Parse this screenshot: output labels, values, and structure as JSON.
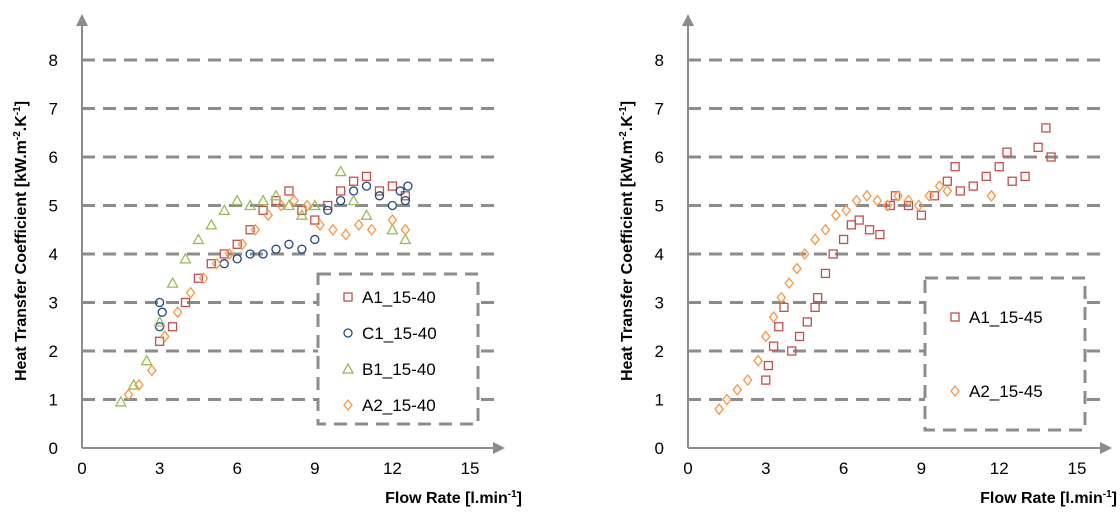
{
  "chart_data": [
    {
      "type": "scatter",
      "title": "",
      "xlabel": "Flow Rate [l.min",
      "xlabel_sup": "-1",
      "xlabel_end": "]",
      "ylabel_parts": [
        "Heat Transfer Coefficient [kW.m",
        "-2",
        ".K",
        "-1",
        "]"
      ],
      "xlim": [
        0,
        15
      ],
      "ylim": [
        0,
        8
      ],
      "xticks": [
        0,
        3,
        6,
        9,
        12,
        15
      ],
      "yticks": [
        0,
        1,
        2,
        3,
        4,
        5,
        6,
        7,
        8
      ],
      "grid": "horizontal dashed",
      "legend_position": "lower-right",
      "series": [
        {
          "name": "A1_15-40",
          "marker": "square",
          "color": "#C0504D",
          "points": [
            [
              3.0,
              2.2
            ],
            [
              3.5,
              2.5
            ],
            [
              4.0,
              3.0
            ],
            [
              4.5,
              3.5
            ],
            [
              5.0,
              3.8
            ],
            [
              5.5,
              4.0
            ],
            [
              6.0,
              4.2
            ],
            [
              6.5,
              4.5
            ],
            [
              7.0,
              4.9
            ],
            [
              7.5,
              5.1
            ],
            [
              8.0,
              5.3
            ],
            [
              8.5,
              4.9
            ],
            [
              9.0,
              4.7
            ],
            [
              9.5,
              5.0
            ],
            [
              10.0,
              5.3
            ],
            [
              10.5,
              5.5
            ],
            [
              11.0,
              5.6
            ],
            [
              11.5,
              5.3
            ],
            [
              12.0,
              5.4
            ],
            [
              12.5,
              5.2
            ]
          ]
        },
        {
          "name": "C1_15-40",
          "marker": "circle",
          "color": "#1F497D",
          "points": [
            [
              3.0,
              3.0
            ],
            [
              3.0,
              2.5
            ],
            [
              3.1,
              2.8
            ],
            [
              5.5,
              3.8
            ],
            [
              6.0,
              3.9
            ],
            [
              6.5,
              4.0
            ],
            [
              7.0,
              4.0
            ],
            [
              7.5,
              4.1
            ],
            [
              8.0,
              4.2
            ],
            [
              8.5,
              4.1
            ],
            [
              9.0,
              4.3
            ],
            [
              9.5,
              4.9
            ],
            [
              10.0,
              5.1
            ],
            [
              10.5,
              5.3
            ],
            [
              11.0,
              5.4
            ],
            [
              11.5,
              5.2
            ],
            [
              12.0,
              5.0
            ],
            [
              12.3,
              5.3
            ],
            [
              12.5,
              5.1
            ],
            [
              12.6,
              5.4
            ]
          ]
        },
        {
          "name": "B1_15-40",
          "marker": "triangle",
          "color": "#9BBB59",
          "points": [
            [
              1.5,
              0.95
            ],
            [
              2.0,
              1.3
            ],
            [
              2.5,
              1.8
            ],
            [
              3.0,
              2.6
            ],
            [
              3.5,
              3.4
            ],
            [
              4.0,
              3.9
            ],
            [
              4.5,
              4.3
            ],
            [
              5.0,
              4.6
            ],
            [
              5.5,
              4.9
            ],
            [
              6.0,
              5.1
            ],
            [
              6.5,
              5.0
            ],
            [
              7.0,
              5.1
            ],
            [
              7.5,
              5.2
            ],
            [
              8.0,
              5.0
            ],
            [
              8.5,
              4.8
            ],
            [
              9.0,
              5.0
            ],
            [
              10.0,
              5.7
            ],
            [
              10.5,
              5.1
            ],
            [
              11.0,
              4.8
            ],
            [
              12.0,
              4.5
            ],
            [
              12.5,
              4.3
            ]
          ]
        },
        {
          "name": "A2_15-40",
          "marker": "diamond",
          "color": "#F79646",
          "points": [
            [
              1.8,
              1.1
            ],
            [
              2.2,
              1.3
            ],
            [
              2.7,
              1.6
            ],
            [
              3.2,
              2.3
            ],
            [
              3.7,
              2.8
            ],
            [
              4.2,
              3.2
            ],
            [
              4.7,
              3.5
            ],
            [
              5.2,
              3.8
            ],
            [
              5.7,
              4.0
            ],
            [
              6.2,
              4.2
            ],
            [
              6.7,
              4.5
            ],
            [
              7.2,
              4.8
            ],
            [
              7.7,
              5.0
            ],
            [
              8.2,
              5.1
            ],
            [
              8.7,
              5.0
            ],
            [
              9.2,
              4.6
            ],
            [
              9.7,
              4.5
            ],
            [
              10.2,
              4.4
            ],
            [
              10.7,
              4.6
            ],
            [
              11.2,
              4.5
            ],
            [
              12.0,
              4.7
            ],
            [
              12.5,
              4.5
            ]
          ]
        }
      ]
    },
    {
      "type": "scatter",
      "title": "",
      "xlabel": "Flow Rate [l.min",
      "xlabel_sup": "-1",
      "xlabel_end": "]",
      "ylabel_parts": [
        "Heat Transfer Coefficient [kW.m",
        "-2",
        ".K",
        "-1",
        "]"
      ],
      "xlim": [
        0,
        15
      ],
      "ylim": [
        0,
        8
      ],
      "xticks": [
        0,
        3,
        6,
        9,
        12,
        15
      ],
      "yticks": [
        0,
        1,
        2,
        3,
        4,
        5,
        6,
        7,
        8
      ],
      "grid": "horizontal dashed",
      "legend_position": "lower-right",
      "series": [
        {
          "name": "A1_15-45",
          "marker": "square",
          "color": "#C0504D",
          "points": [
            [
              3.0,
              1.4
            ],
            [
              3.1,
              1.7
            ],
            [
              3.3,
              2.1
            ],
            [
              3.5,
              2.5
            ],
            [
              3.7,
              2.9
            ],
            [
              4.0,
              2.0
            ],
            [
              4.3,
              2.3
            ],
            [
              4.6,
              2.6
            ],
            [
              4.9,
              2.9
            ],
            [
              5.0,
              3.1
            ],
            [
              5.3,
              3.6
            ],
            [
              5.6,
              4.0
            ],
            [
              6.0,
              4.3
            ],
            [
              6.3,
              4.6
            ],
            [
              6.6,
              4.7
            ],
            [
              7.0,
              4.5
            ],
            [
              7.4,
              4.4
            ],
            [
              7.8,
              5.0
            ],
            [
              8.0,
              5.2
            ],
            [
              8.5,
              5.0
            ],
            [
              9.0,
              4.8
            ],
            [
              9.5,
              5.2
            ],
            [
              10.0,
              5.5
            ],
            [
              10.3,
              5.8
            ],
            [
              10.5,
              5.3
            ],
            [
              11.0,
              5.4
            ],
            [
              11.5,
              5.6
            ],
            [
              12.0,
              5.8
            ],
            [
              12.3,
              6.1
            ],
            [
              12.5,
              5.5
            ],
            [
              13.0,
              5.6
            ],
            [
              13.5,
              6.2
            ],
            [
              13.8,
              6.6
            ],
            [
              14.0,
              6.0
            ]
          ]
        },
        {
          "name": "A2_15-45",
          "marker": "diamond",
          "color": "#F79646",
          "points": [
            [
              1.2,
              0.8
            ],
            [
              1.5,
              1.0
            ],
            [
              1.9,
              1.2
            ],
            [
              2.3,
              1.4
            ],
            [
              2.7,
              1.8
            ],
            [
              3.0,
              2.3
            ],
            [
              3.3,
              2.7
            ],
            [
              3.6,
              3.1
            ],
            [
              3.9,
              3.4
            ],
            [
              4.2,
              3.7
            ],
            [
              4.5,
              4.0
            ],
            [
              4.9,
              4.3
            ],
            [
              5.3,
              4.5
            ],
            [
              5.7,
              4.8
            ],
            [
              6.1,
              4.9
            ],
            [
              6.5,
              5.1
            ],
            [
              6.9,
              5.2
            ],
            [
              7.3,
              5.1
            ],
            [
              7.7,
              5.0
            ],
            [
              8.1,
              5.2
            ],
            [
              8.5,
              5.1
            ],
            [
              8.9,
              5.0
            ],
            [
              9.3,
              5.2
            ],
            [
              9.7,
              5.4
            ],
            [
              10.0,
              5.3
            ],
            [
              11.7,
              5.2
            ]
          ]
        }
      ]
    }
  ]
}
